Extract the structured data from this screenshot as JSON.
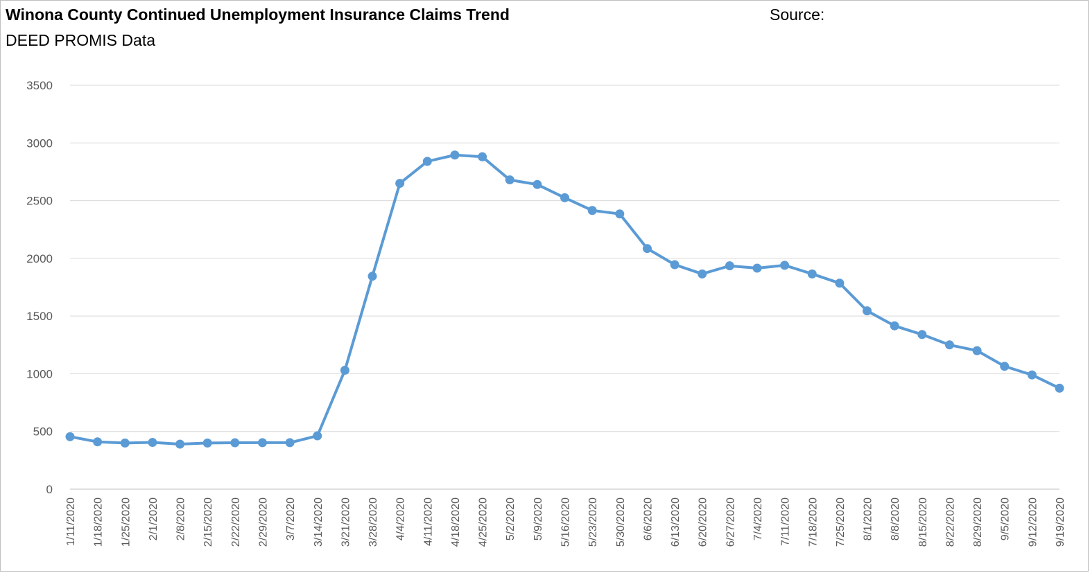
{
  "header": {
    "title": "Winona County Continued Unemployment Insurance Claims Trend",
    "source_label": "Source:",
    "source_value": "DEED PROMIS Data"
  },
  "colors": {
    "series": "#5b9bd5",
    "grid": "#d9d9d9",
    "tick_text": "#595959"
  },
  "chart_data": {
    "type": "line",
    "title": "Winona County Continued Unemployment Insurance Claims Trend",
    "xlabel": "",
    "ylabel": "",
    "ylim": [
      0,
      3500
    ],
    "yticks": [
      0,
      500,
      1000,
      1500,
      2000,
      2500,
      3000,
      3500
    ],
    "grid": true,
    "legend": "none",
    "categories": [
      "1/11/2020",
      "1/18/2020",
      "1/25/2020",
      "2/1/2020",
      "2/8/2020",
      "2/15/2020",
      "2/22/2020",
      "2/29/2020",
      "3/7/2020",
      "3/14/2020",
      "3/21/2020",
      "3/28/2020",
      "4/4/2020",
      "4/11/2020",
      "4/18/2020",
      "4/25/2020",
      "5/2/2020",
      "5/9/2020",
      "5/16/2020",
      "5/23/2020",
      "5/30/2020",
      "6/6/2020",
      "6/13/2020",
      "6/20/2020",
      "6/27/2020",
      "7/4/2020",
      "7/11/2020",
      "7/18/2020",
      "7/25/2020",
      "8/1/2020",
      "8/8/2020",
      "8/15/2020",
      "8/22/2020",
      "8/29/2020",
      "9/5/2020",
      "9/12/2020",
      "9/19/2020"
    ],
    "series": [
      {
        "name": "",
        "values": [
          455,
          410,
          400,
          405,
          390,
          400,
          402,
          403,
          403,
          462,
          1030,
          1845,
          2650,
          2840,
          2895,
          2880,
          2680,
          2640,
          2525,
          2415,
          2385,
          2085,
          1945,
          1865,
          1935,
          1915,
          1940,
          1865,
          1785,
          1545,
          1415,
          1340,
          1250,
          1200,
          1065,
          990,
          875
        ]
      }
    ]
  }
}
